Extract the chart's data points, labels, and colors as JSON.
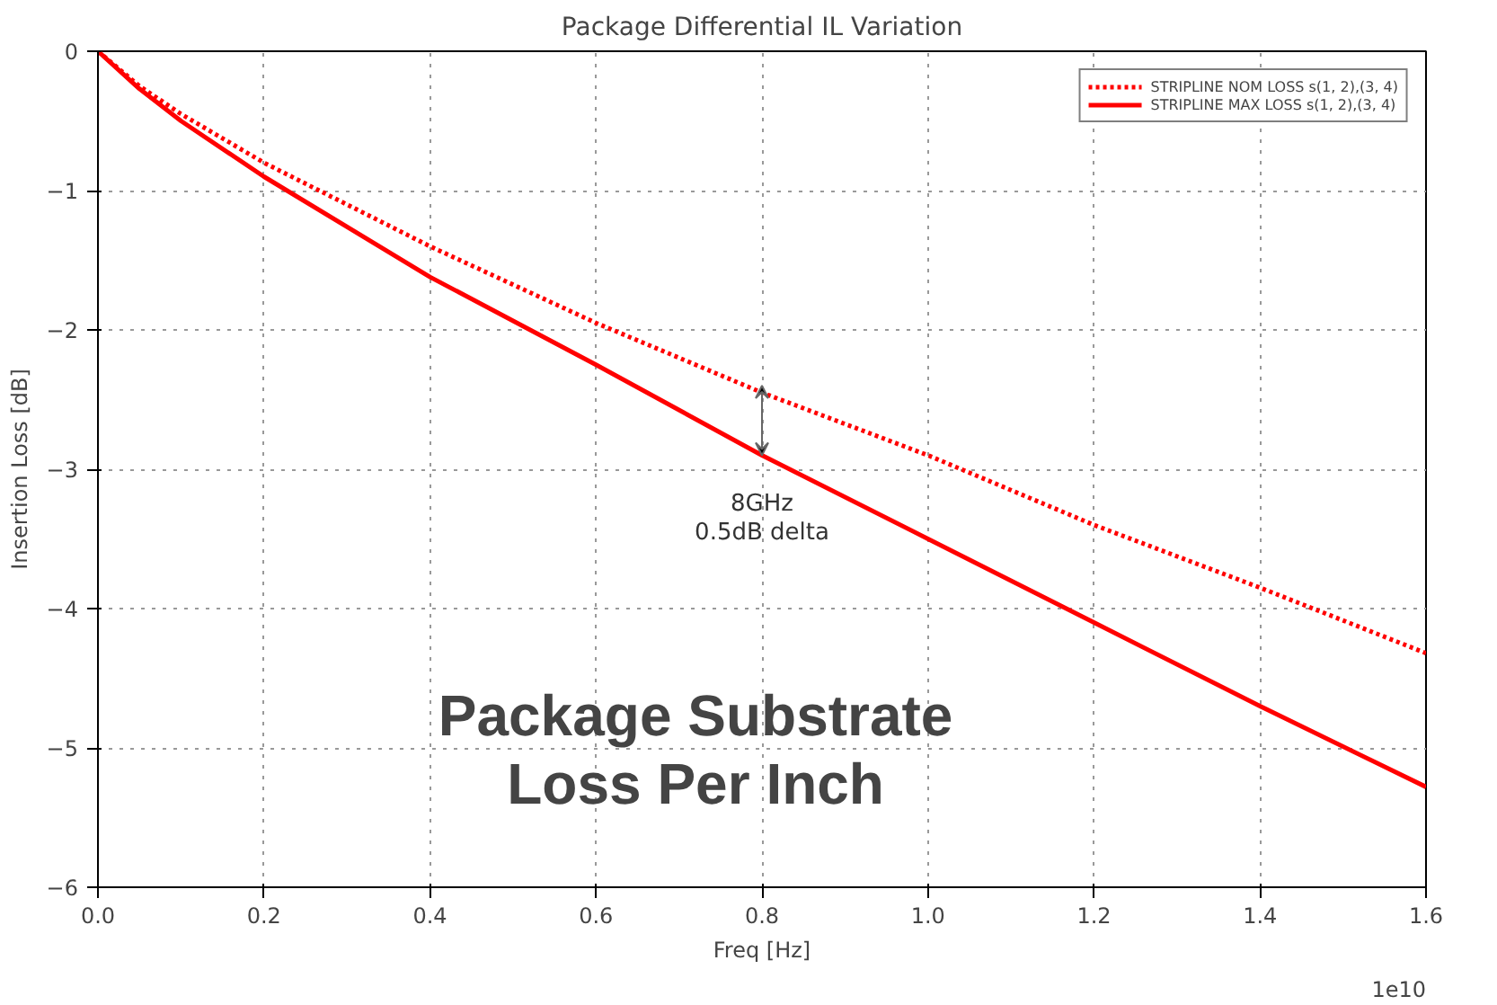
{
  "chart_data": {
    "type": "line",
    "title": "Package Differential IL Variation",
    "xlabel": "Freq [Hz]",
    "ylabel": "Insertion Loss [dB]",
    "xlim": [
      0,
      1.6
    ],
    "ylim": [
      -6,
      0
    ],
    "xticks": [
      {
        "value": 0,
        "label": "0.0"
      },
      0.2,
      0.4,
      0.6,
      0.8,
      {
        "value": 1,
        "label": "1.0"
      },
      1.2,
      1.4,
      1.6
    ],
    "yticks": [
      {
        "value": 0,
        "label": "0"
      },
      {
        "value": -1,
        "label": "−1"
      },
      {
        "value": -2,
        "label": "−2"
      },
      {
        "value": -3,
        "label": "−3"
      },
      {
        "value": -4,
        "label": "−4"
      },
      {
        "value": -5,
        "label": "−5"
      },
      {
        "value": -6,
        "label": "−6"
      }
    ],
    "x": [
      0,
      0.05,
      0.1,
      0.2,
      0.4,
      0.6,
      0.8,
      1.0,
      1.2,
      1.4,
      1.6
    ],
    "series": [
      {
        "name": "STRIPLINE NOM LOSS s(1, 2),(3, 4)",
        "color": "#ff0000",
        "line_style": "dotted",
        "values": [
          0,
          -0.25,
          -0.45,
          -0.8,
          -1.4,
          -1.95,
          -2.45,
          -2.9,
          -3.4,
          -3.85,
          -4.32
        ]
      },
      {
        "name": "STRIPLINE MAX LOSS s(1, 2),(3, 4)",
        "color": "#ff0000",
        "line_style": "solid",
        "values": [
          0,
          -0.27,
          -0.5,
          -0.9,
          -1.62,
          -2.25,
          -2.9,
          -3.5,
          -4.1,
          -4.7,
          -5.28
        ]
      }
    ],
    "annotations": [
      "8GHz\n0.5dB delta",
      "Package Substrate\nLoss Per Inch",
      "1e10"
    ],
    "grid": true,
    "legend": "top right",
    "marker": "none"
  }
}
